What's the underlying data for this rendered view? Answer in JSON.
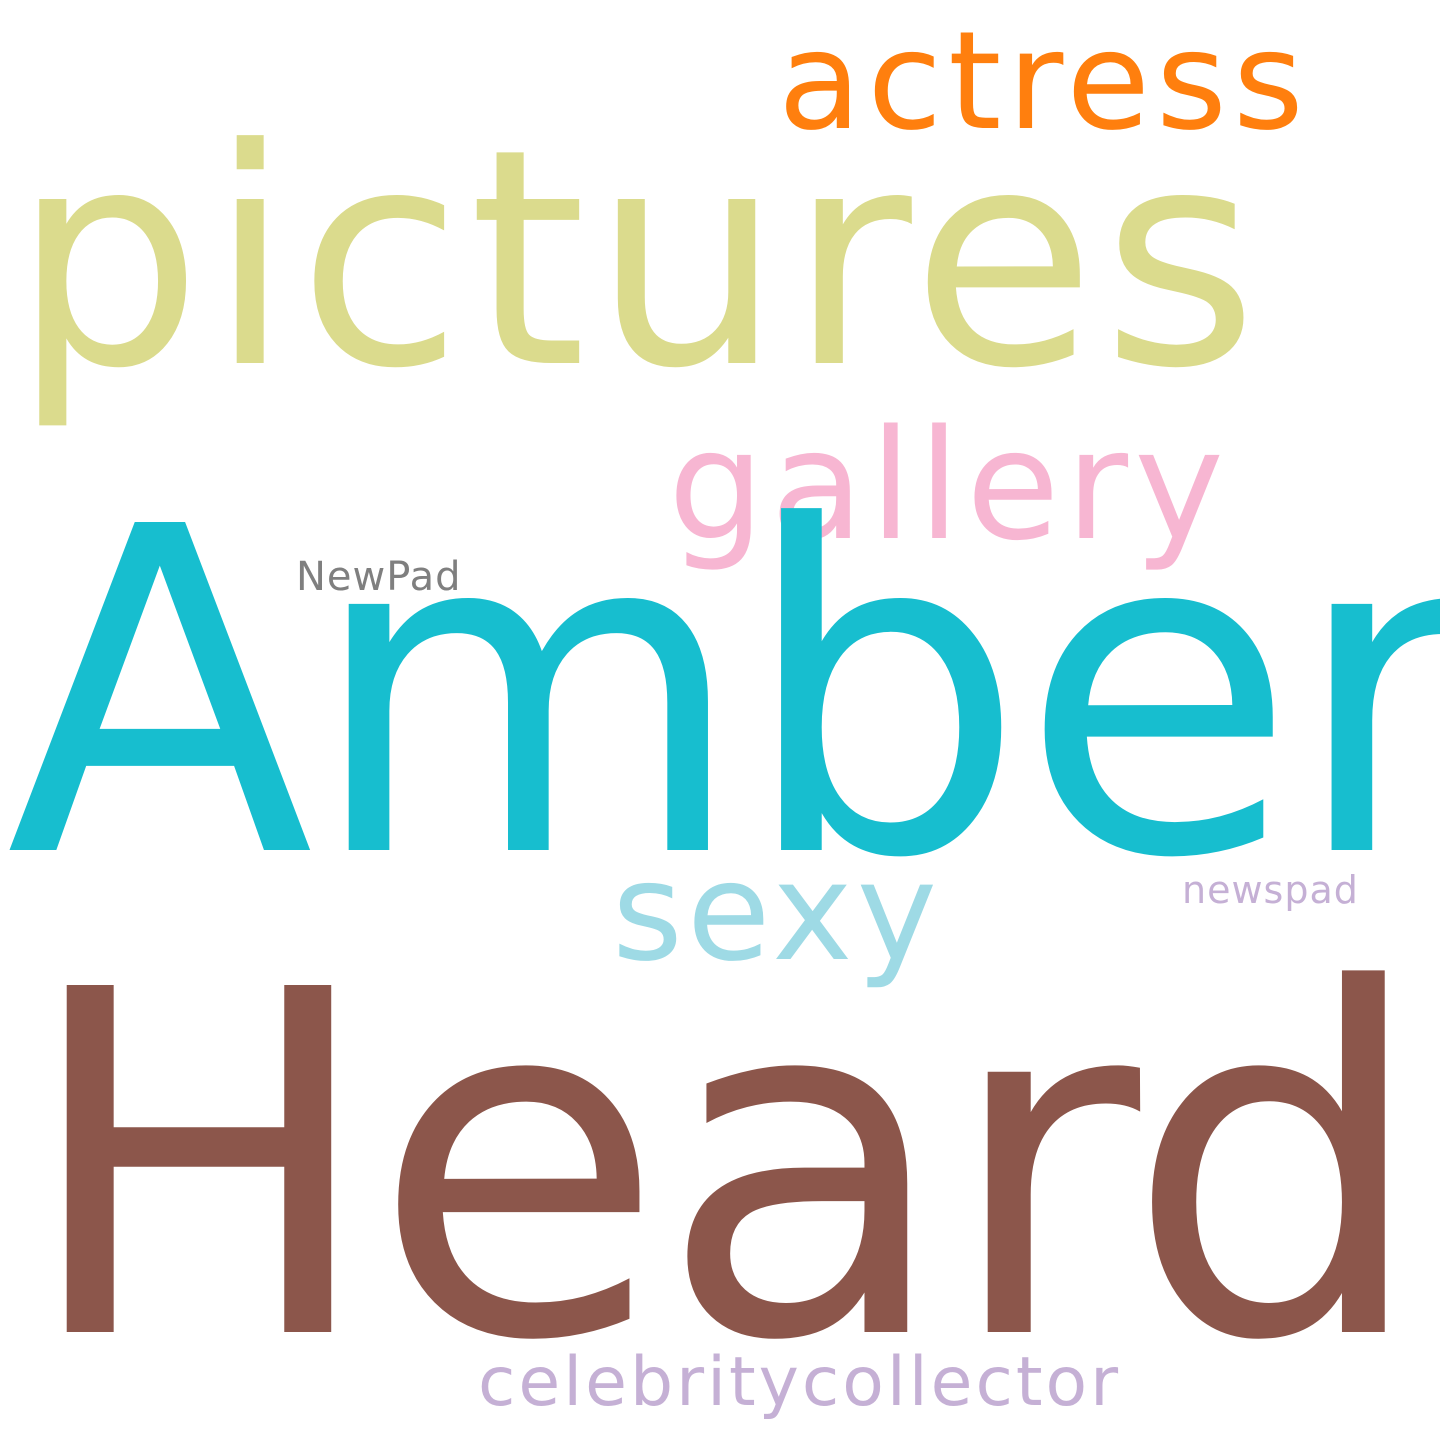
{
  "word_cloud": {
    "background": "#ffffff",
    "words": [
      {
        "id": "actress",
        "text": "actress",
        "color": "#ff7f0e"
      },
      {
        "id": "pictures",
        "text": "pictures",
        "color": "#dbdb8d"
      },
      {
        "id": "gallery",
        "text": "gallery",
        "color": "#f7b6d2"
      },
      {
        "id": "newpad",
        "text": "NewPad",
        "color": "#7f7f7f"
      },
      {
        "id": "amber",
        "text": "Amber",
        "color": "#17becf"
      },
      {
        "id": "sexy",
        "text": "sexy",
        "color": "#9edae5"
      },
      {
        "id": "newspad",
        "text": "newspad",
        "color": "#c5b0d5"
      },
      {
        "id": "heard",
        "text": "Heard",
        "color": "#8c564b"
      },
      {
        "id": "celebritycollector",
        "text": "celebritycollector",
        "color": "#c5b0d5"
      }
    ]
  }
}
